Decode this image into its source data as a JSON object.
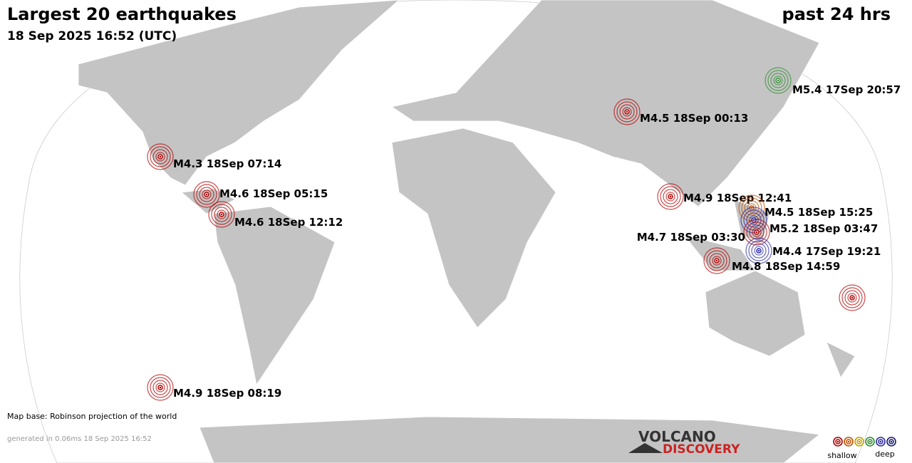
{
  "header": {
    "title": "Largest 20 earthquakes",
    "subtitle": "18 Sep 2025 16:52 (UTC)",
    "period": "past 24 hrs"
  },
  "quakes": [
    {
      "label": "M5.4 17Sep 20:57",
      "color": "#2e8b2e"
    },
    {
      "label": "M4.5 18Sep 00:13",
      "color": "#b00000"
    },
    {
      "label": "M4.3 18Sep 07:14",
      "color": "#b00000"
    },
    {
      "label": "M4.9 18Sep 12:41",
      "color": "#b00000"
    },
    {
      "label": "M4.6 18Sep 05:15",
      "color": "#b00000"
    },
    {
      "label": "M4.5 18Sep 15:25",
      "color": "#c05000"
    },
    {
      "label": "M4.6 18Sep 12:12",
      "color": "#b00000"
    },
    {
      "label": "M5.2 18Sep 03:47",
      "color": "#2a2aa8"
    },
    {
      "label": "M4.7 18Sep 03:30",
      "color": "#b00000"
    },
    {
      "label": "M4.4 17Sep 19:21",
      "color": "#2a2aa8"
    },
    {
      "label": "M4.8 18Sep 14:59",
      "color": "#b00000"
    },
    {
      "color": "#b00000"
    },
    {
      "label": "M4.9 18Sep 08:19",
      "color": "#b00000"
    }
  ],
  "footer": {
    "map_base": "Map base: Robinson projection of the world",
    "generated": "generated in 0.06ms 18 Sep 2025 16:52"
  },
  "logo": {
    "line1": "VOLCANO",
    "line2": "DISCOVERY"
  },
  "legend": {
    "shallow": "shallow",
    "deep": "deep",
    "colors": [
      "#b00000",
      "#c05000",
      "#c0a000",
      "#2e8b2e",
      "#2a2aa8",
      "#1a1a70"
    ]
  }
}
